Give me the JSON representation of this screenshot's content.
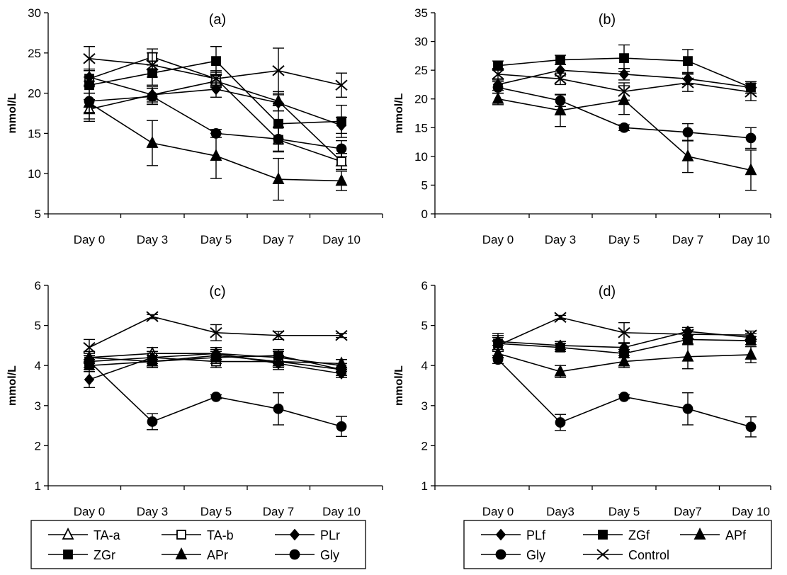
{
  "legends": [
    {
      "panels": "a-c",
      "entries": [
        {
          "name": "TA-a",
          "marker": "triangle-open"
        },
        {
          "name": "TA-b",
          "marker": "square-open"
        },
        {
          "name": "PLr",
          "marker": "diamond"
        },
        {
          "name": "ZGr",
          "marker": "square"
        },
        {
          "name": "APr",
          "marker": "triangle"
        },
        {
          "name": "Gly",
          "marker": "circle"
        }
      ]
    },
    {
      "panels": "b-d",
      "entries": [
        {
          "name": "PLf",
          "marker": "diamond"
        },
        {
          "name": "ZGf",
          "marker": "square"
        },
        {
          "name": "APf",
          "marker": "triangle"
        },
        {
          "name": "Gly",
          "marker": "circle"
        },
        {
          "name": "Control",
          "marker": "x"
        }
      ]
    }
  ],
  "chart_data": [
    {
      "type": "line",
      "title": "(a)",
      "ylabel": "mmol/L",
      "categories": [
        "Day 0",
        "Day 3",
        "Day 5",
        "Day 7",
        "Day 10"
      ],
      "ylim": [
        5,
        30
      ],
      "yticks": [
        5,
        10,
        15,
        20,
        25,
        30
      ],
      "series": [
        {
          "name": "TA-a",
          "marker": "triangle-open",
          "values": [
            18,
            19.8,
            21.5,
            19,
            11.5
          ],
          "err": [
            1.2,
            0.8,
            0.8,
            1.2,
            1
          ]
        },
        {
          "name": "TA-b",
          "marker": "square-open",
          "values": [
            21.8,
            24.5,
            21.8,
            14.2,
            11.5
          ],
          "err": [
            1,
            1,
            0.8,
            1.5,
            1
          ]
        },
        {
          "name": "PLr",
          "marker": "diamond",
          "values": [
            22,
            19.8,
            20.5,
            18.8,
            16
          ],
          "err": [
            1,
            1,
            1,
            1,
            1
          ]
        },
        {
          "name": "ZGr",
          "marker": "square",
          "values": [
            21,
            22.5,
            24,
            16.2,
            16.5
          ],
          "err": [
            1,
            1.5,
            1.8,
            2.5,
            2
          ]
        },
        {
          "name": "APr",
          "marker": "triangle",
          "values": [
            18.8,
            13.8,
            12.2,
            9.3,
            9.1
          ],
          "err": [
            1.2,
            2.8,
            2.8,
            2.6,
            1.2
          ]
        },
        {
          "name": "Gly",
          "marker": "circle",
          "values": [
            19,
            19.6,
            15,
            14.3,
            13.1
          ],
          "err": [
            2.5,
            1,
            0.5,
            1.5,
            1
          ]
        },
        {
          "name": "Control",
          "marker": "x",
          "values": [
            24.3,
            23.5,
            21.8,
            22.8,
            21
          ],
          "err": [
            1.5,
            1.5,
            1,
            2.8,
            1.5
          ]
        }
      ]
    },
    {
      "type": "line",
      "title": "(b)",
      "ylabel": "mmol/L",
      "categories": [
        "Day 0",
        "Day 3",
        "Day 5",
        "Day 7",
        "Day 10"
      ],
      "ylim": [
        0,
        35
      ],
      "yticks": [
        0,
        5,
        10,
        15,
        20,
        25,
        30,
        35
      ],
      "series": [
        {
          "name": "PLf",
          "marker": "diamond",
          "values": [
            22.5,
            25,
            24.3,
            23.5,
            22
          ],
          "err": [
            1,
            1,
            1,
            1,
            1
          ]
        },
        {
          "name": "ZGf",
          "marker": "square",
          "values": [
            25.8,
            26.8,
            27.1,
            26.6,
            22
          ],
          "err": [
            0.8,
            0.8,
            2.3,
            2,
            1
          ]
        },
        {
          "name": "APf",
          "marker": "triangle",
          "values": [
            20,
            18,
            19.8,
            10,
            7.6
          ],
          "err": [
            1,
            2.8,
            2.5,
            2.8,
            3.5
          ]
        },
        {
          "name": "Gly",
          "marker": "circle",
          "values": [
            22,
            19.7,
            15,
            14.2,
            13.2
          ],
          "err": [
            1,
            1,
            0.5,
            1.5,
            1.8
          ]
        },
        {
          "name": "Control",
          "marker": "x",
          "values": [
            24.3,
            23.5,
            21.3,
            22.8,
            21.2
          ],
          "err": [
            1,
            1,
            1.5,
            1.5,
            1.5
          ]
        }
      ]
    },
    {
      "type": "line",
      "title": "(c)",
      "ylabel": "mmol/L",
      "categories": [
        "Day 0",
        "Day 3",
        "Day 5",
        "Day 7",
        "Day 10"
      ],
      "ylim": [
        1,
        6
      ],
      "yticks": [
        1,
        2,
        3,
        4,
        5,
        6
      ],
      "series": [
        {
          "name": "TA-a",
          "marker": "triangle-open",
          "values": [
            4.2,
            4.3,
            4.3,
            4.2,
            4
          ],
          "err": [
            0.15,
            0.15,
            0.15,
            0.15,
            0.15
          ]
        },
        {
          "name": "TA-b",
          "marker": "square-open",
          "values": [
            4.1,
            4.2,
            4.1,
            4.1,
            3.9
          ],
          "err": [
            0.15,
            0.15,
            0.15,
            0.15,
            0.15
          ]
        },
        {
          "name": "PLr",
          "marker": "diamond",
          "values": [
            3.65,
            4.2,
            4.3,
            4.05,
            3.8
          ],
          "err": [
            0.2,
            0.15,
            0.15,
            0.15,
            0.1
          ]
        },
        {
          "name": "ZGr",
          "marker": "square",
          "values": [
            4,
            4.1,
            4.2,
            4.25,
            3.9
          ],
          "err": [
            0.15,
            0.15,
            0.15,
            0.15,
            0.15
          ]
        },
        {
          "name": "APr",
          "marker": "triangle",
          "values": [
            4.2,
            4.1,
            4.25,
            4.1,
            4.05
          ],
          "err": [
            0.15,
            0.15,
            0.15,
            0.15,
            0.1
          ]
        },
        {
          "name": "Gly",
          "marker": "circle",
          "values": [
            4.1,
            2.6,
            3.22,
            2.92,
            2.48
          ],
          "err": [
            0.2,
            0.2,
            0.05,
            0.4,
            0.25
          ]
        },
        {
          "name": "Control",
          "marker": "x",
          "values": [
            4.45,
            5.22,
            4.82,
            4.75,
            4.75
          ],
          "err": [
            0.2,
            0.05,
            0.2,
            0.1,
            0.05
          ]
        }
      ]
    },
    {
      "type": "line",
      "title": "(d)",
      "ylabel": "mmol/L",
      "categories": [
        "Day 0",
        "Day3",
        "Day 5",
        "Day7",
        "Day 10"
      ],
      "ylim": [
        1,
        6
      ],
      "yticks": [
        1,
        2,
        3,
        4,
        5,
        6
      ],
      "series": [
        {
          "name": "PLf",
          "marker": "diamond",
          "values": [
            4.6,
            4.5,
            4.45,
            4.85,
            4.7
          ],
          "err": [
            0.1,
            0.1,
            0.1,
            0.1,
            0.1
          ]
        },
        {
          "name": "ZGf",
          "marker": "square",
          "values": [
            4.55,
            4.45,
            4.3,
            4.65,
            4.62
          ],
          "err": [
            0.2,
            0.1,
            0.1,
            0.1,
            0.1
          ]
        },
        {
          "name": "APf",
          "marker": "triangle",
          "values": [
            4.3,
            3.85,
            4.1,
            4.22,
            4.27
          ],
          "err": [
            0.1,
            0.15,
            0.15,
            0.3,
            0.2
          ]
        },
        {
          "name": "Gly",
          "marker": "circle",
          "values": [
            4.15,
            2.58,
            3.22,
            2.92,
            2.47
          ],
          "err": [
            0.1,
            0.2,
            0.05,
            0.4,
            0.25
          ]
        },
        {
          "name": "Control",
          "marker": "x",
          "values": [
            4.5,
            5.2,
            4.82,
            4.78,
            4.76
          ],
          "err": [
            0.3,
            0.05,
            0.25,
            0.1,
            0.1
          ]
        }
      ]
    }
  ]
}
